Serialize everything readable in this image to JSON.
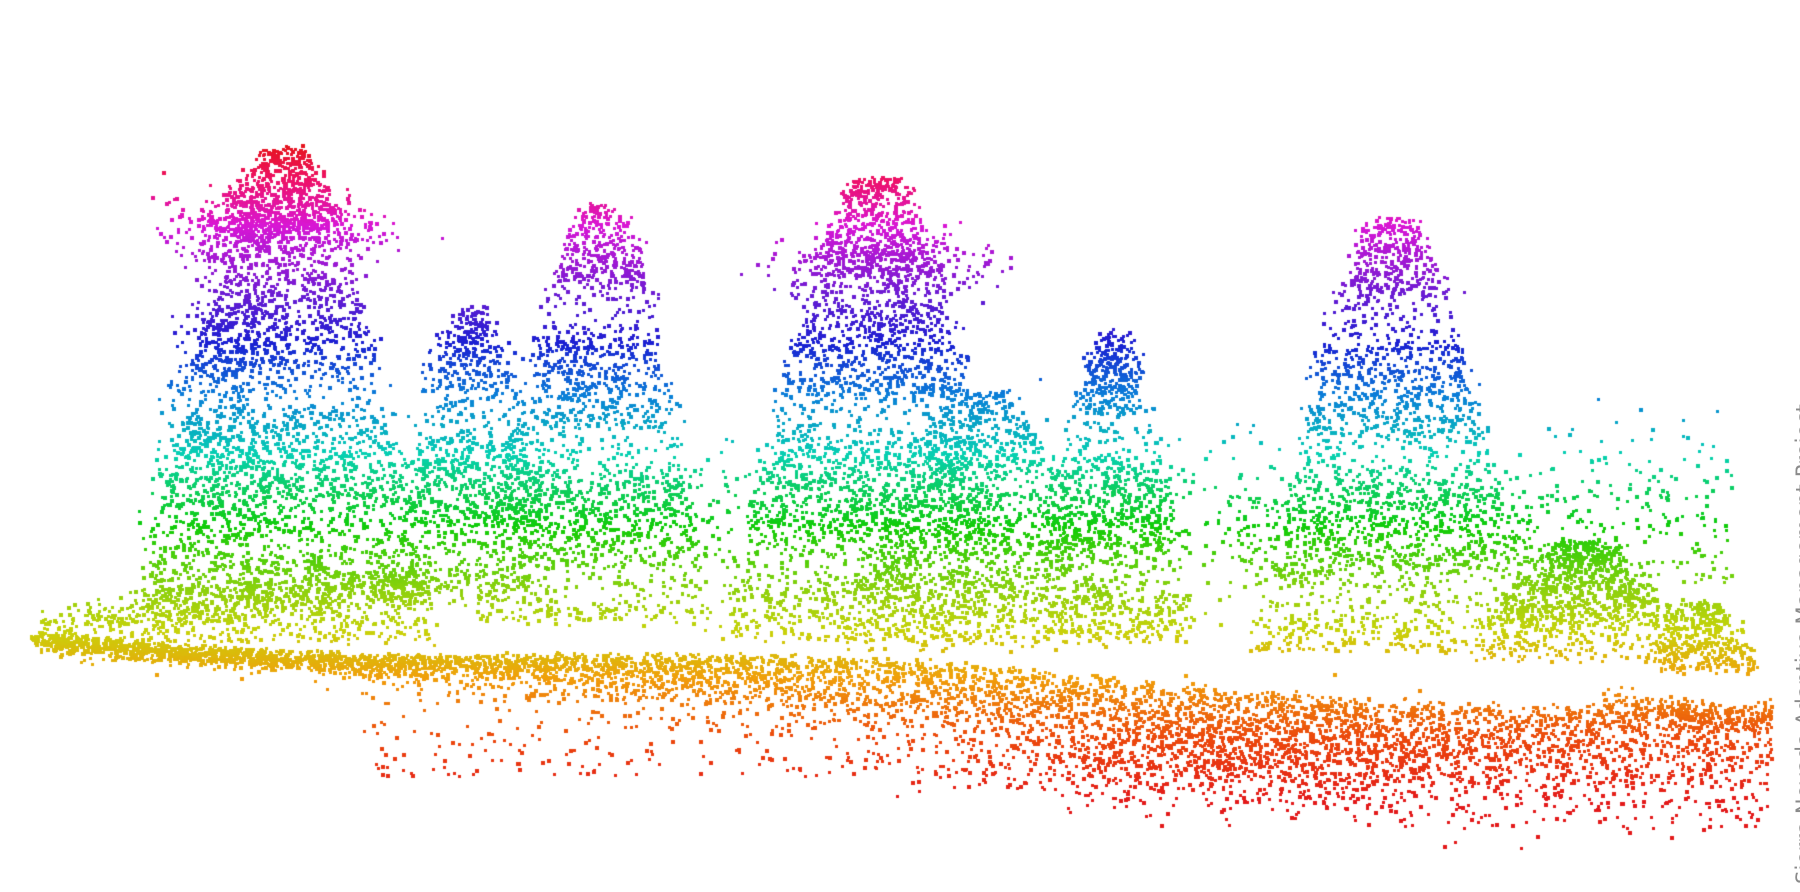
{
  "image": {
    "subject": "LiDAR point cloud of a forest stand, points coloured by height",
    "colormap": [
      "#e3191a",
      "#ef4a0c",
      "#f2a00a",
      "#c8d20a",
      "#86d10c",
      "#10cc08",
      "#06d0b2",
      "#0a7fd8",
      "#1a1fd2",
      "#7b1ad3",
      "#d916d4",
      "#ee1166"
    ]
  },
  "credit": {
    "text": "Sierra Nevada Adaptive Management Project"
  }
}
